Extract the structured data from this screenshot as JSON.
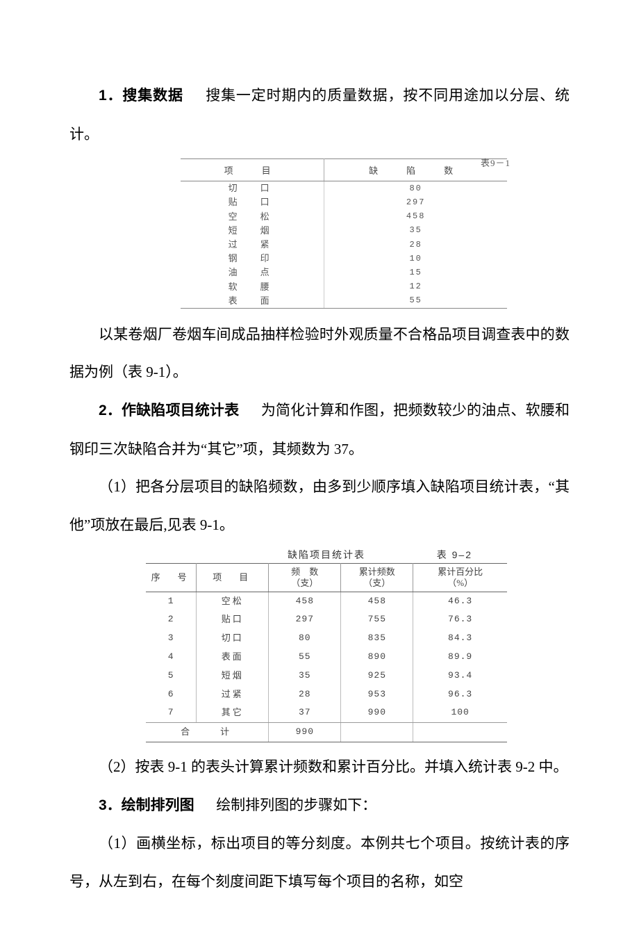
{
  "para1_prefix": "1．搜集数据",
  "para1_rest": "搜集一定时期内的质量数据，按不同用途加以分层、统计。",
  "table91": {
    "label": "表9－1",
    "head_item": "项　目",
    "head_defect": "缺　陷　数",
    "rows": [
      {
        "item": "切　口",
        "val": "80"
      },
      {
        "item": "贴　口",
        "val": "297"
      },
      {
        "item": "空　松",
        "val": "458"
      },
      {
        "item": "短　烟",
        "val": "35"
      },
      {
        "item": "过　紧",
        "val": "28"
      },
      {
        "item": "钢　印",
        "val": "10"
      },
      {
        "item": "油　点",
        "val": "15"
      },
      {
        "item": "软　腰",
        "val": "12"
      },
      {
        "item": "表　面",
        "val": "55"
      }
    ]
  },
  "para2": "以某卷烟厂卷烟车间成品抽样检验时外观质量不合格品项目调查表中的数据为例（表 9-1）。",
  "para3_prefix": "2．作缺陷项目统计表",
  "para3_rest": "为简化计算和作图，把频数较少的油点、软腰和钢印三次缺陷合并为“其它”项，其频数为 37。",
  "para4": "（1）把各分层项目的缺陷频数，由多到少顺序填入缺陷项目统计表，“其他”项放在最后,见表 9-1。",
  "table92": {
    "title": "缺陷项目统计表",
    "label": "表 9–2",
    "head": {
      "seq": "序　号",
      "item": "项　目",
      "freq": "频　数\n（支）",
      "cum": "累计频数\n（支）",
      "pct": "累计百分比\n（%）"
    },
    "rows": [
      {
        "n": "1",
        "item": "空松",
        "f": "458",
        "c": "458",
        "p": "46.3"
      },
      {
        "n": "2",
        "item": "贴口",
        "f": "297",
        "c": "755",
        "p": "76.3"
      },
      {
        "n": "3",
        "item": "切口",
        "f": "80",
        "c": "835",
        "p": "84.3"
      },
      {
        "n": "4",
        "item": "表面",
        "f": "55",
        "c": "890",
        "p": "89.9"
      },
      {
        "n": "5",
        "item": "短烟",
        "f": "35",
        "c": "925",
        "p": "93.4"
      },
      {
        "n": "6",
        "item": "过紧",
        "f": "28",
        "c": "953",
        "p": "96.3"
      },
      {
        "n": "7",
        "item": "其它",
        "f": "37",
        "c": "990",
        "p": "100"
      }
    ],
    "total_label": "合　　计",
    "total_f": "990",
    "total_c": "",
    "total_p": ""
  },
  "para5": "（2）按表 9-1 的表头计算累计频数和累计百分比。并填入统计表 9-2 中。",
  "para6_prefix": "3．绘制排列图",
  "para6_rest": "绘制排列图的步骤如下：",
  "para7": "（1）画横坐标，标出项目的等分刻度。本例共七个项目。按统计表的序号，从左到右，在每个刻度间距下填写每个项目的名称，如空"
}
